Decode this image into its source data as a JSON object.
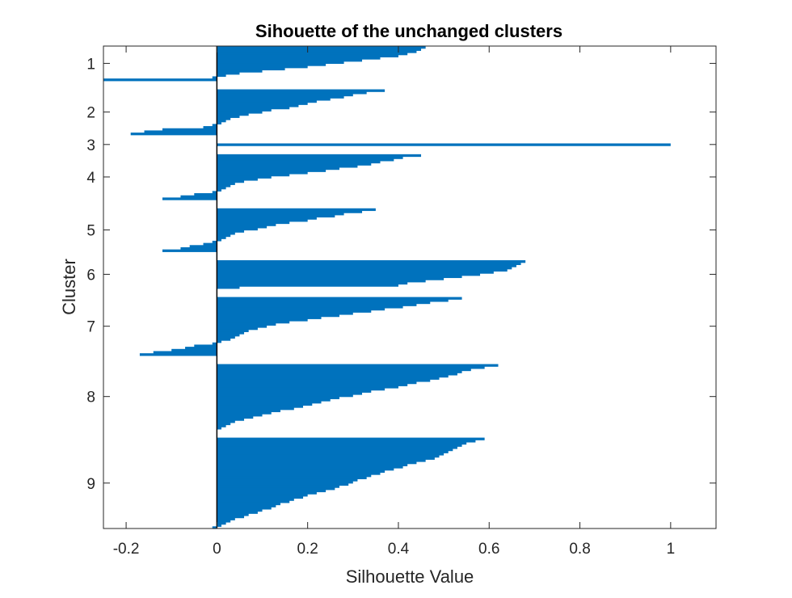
{
  "chart_data": {
    "type": "bar",
    "orientation": "horizontal",
    "title": "Sihouette of the unchanged clusters",
    "xlabel": "Silhouette Value",
    "ylabel": "Cluster",
    "xlim": [
      -0.25,
      1.1
    ],
    "xticks": [
      -0.2,
      0,
      0.2,
      0.4,
      0.6,
      0.8,
      1
    ],
    "xtick_labels": [
      "-0.2",
      "0",
      "0.2",
      "0.4",
      "0.6",
      "0.8",
      "1"
    ],
    "grid": false,
    "color": "#0072BD",
    "clusters": [
      {
        "label": "1",
        "silhouette": [
          0.46,
          0.45,
          0.44,
          0.42,
          0.4,
          0.36,
          0.32,
          0.28,
          0.24,
          0.2,
          0.15,
          0.1,
          0.05,
          0.02,
          -0.01,
          -0.25
        ]
      },
      {
        "label": "2",
        "silhouette": [
          0.37,
          0.33,
          0.3,
          0.28,
          0.25,
          0.22,
          0.2,
          0.18,
          0.16,
          0.12,
          0.1,
          0.07,
          0.05,
          0.03,
          0.02,
          0.01,
          -0.01,
          -0.03,
          -0.12,
          -0.16,
          -0.19
        ]
      },
      {
        "label": "3",
        "silhouette": [
          1.0
        ]
      },
      {
        "label": "4",
        "silhouette": [
          0.45,
          0.41,
          0.39,
          0.36,
          0.34,
          0.31,
          0.27,
          0.24,
          0.2,
          0.16,
          0.12,
          0.09,
          0.06,
          0.04,
          0.03,
          0.02,
          0.01,
          -0.01,
          -0.05,
          -0.08,
          -0.12
        ]
      },
      {
        "label": "5",
        "silhouette": [
          0.35,
          0.32,
          0.28,
          0.26,
          0.22,
          0.2,
          0.16,
          0.13,
          0.11,
          0.09,
          0.06,
          0.04,
          0.03,
          0.02,
          0.01,
          -0.01,
          -0.03,
          -0.06,
          -0.08,
          -0.12
        ]
      },
      {
        "label": "6",
        "silhouette": [
          0.68,
          0.67,
          0.66,
          0.65,
          0.64,
          0.61,
          0.58,
          0.54,
          0.5,
          0.46,
          0.42,
          0.4,
          0.05
        ]
      },
      {
        "label": "7",
        "silhouette": [
          0.54,
          0.51,
          0.47,
          0.44,
          0.41,
          0.37,
          0.34,
          0.3,
          0.27,
          0.23,
          0.2,
          0.16,
          0.13,
          0.11,
          0.09,
          0.07,
          0.06,
          0.05,
          0.04,
          0.03,
          0.01,
          -0.01,
          -0.05,
          -0.07,
          -0.1,
          -0.14,
          -0.17
        ]
      },
      {
        "label": "8",
        "silhouette": [
          0.62,
          0.59,
          0.56,
          0.54,
          0.53,
          0.51,
          0.49,
          0.47,
          0.44,
          0.42,
          0.4,
          0.37,
          0.34,
          0.32,
          0.3,
          0.27,
          0.25,
          0.23,
          0.21,
          0.19,
          0.17,
          0.14,
          0.12,
          0.1,
          0.08,
          0.06,
          0.04,
          0.03,
          0.02,
          0.01
        ]
      },
      {
        "label": "9",
        "silhouette": [
          0.59,
          0.57,
          0.55,
          0.54,
          0.53,
          0.52,
          0.51,
          0.5,
          0.49,
          0.48,
          0.46,
          0.44,
          0.42,
          0.41,
          0.39,
          0.37,
          0.36,
          0.34,
          0.33,
          0.31,
          0.3,
          0.29,
          0.27,
          0.26,
          0.24,
          0.22,
          0.2,
          0.19,
          0.17,
          0.16,
          0.14,
          0.13,
          0.12,
          0.1,
          0.09,
          0.07,
          0.06,
          0.04,
          0.03,
          0.02,
          0.01,
          -0.01
        ]
      }
    ]
  }
}
